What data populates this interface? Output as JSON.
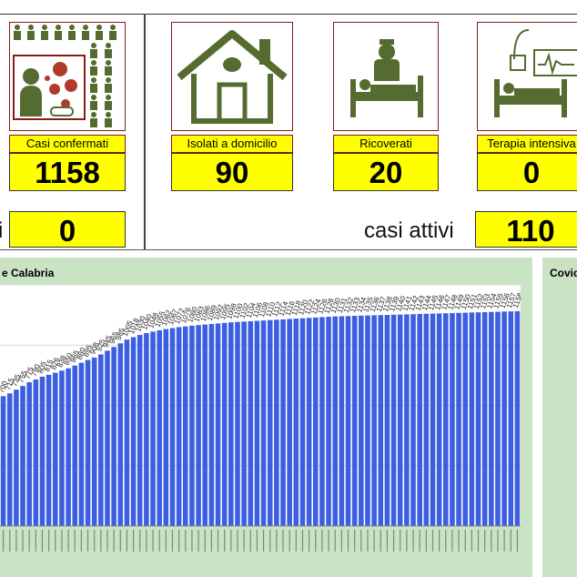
{
  "stats": {
    "confirmed_label": "Casi confermati",
    "confirmed_value": "1158",
    "isolated_label": "Isolati a domicilio",
    "isolated_value": "90",
    "hospitalized_label": "Ricoverati",
    "hospitalized_value": "20",
    "icu_label": "Terapia intensiva",
    "icu_value": "0",
    "left_partial_label": "i",
    "left_value": "0",
    "active_label": "casi attivi",
    "active_value": "110"
  },
  "icons": {
    "people_grid": "people-grid-icon",
    "virus_sneeze": "virus-sneeze-icon",
    "house": "house-icon",
    "hospital_bed": "hospital-bed-icon",
    "icu_bed": "icu-bed-icon"
  },
  "colors": {
    "label_bg": "#ffff00",
    "icon_green": "#556b2f",
    "bar_blue": "#3b5fe0",
    "panel_green": "#c9e3c4"
  },
  "left_panel": {
    "title": "e Calabria"
  },
  "right_panel": {
    "title": "Covid"
  },
  "chart_data": {
    "type": "bar",
    "title": "e Calabria",
    "ylim": [
      0,
      1300
    ],
    "grid": true,
    "series": [
      {
        "values": [
          700,
          715,
          735,
          755,
          775,
          790,
          805,
          815,
          826,
          838,
          850,
          865,
          880,
          895,
          908,
          925,
          945,
          965,
          985,
          1005,
          1018,
          1030,
          1040,
          1048,
          1055,
          1062,
          1067,
          1072,
          1076,
          1080,
          1083,
          1086,
          1089,
          1092,
          1095,
          1098,
          1100,
          1102,
          1104,
          1106,
          1108,
          1110,
          1112,
          1114,
          1116,
          1118,
          1120,
          1122,
          1124,
          1126,
          1128,
          1130,
          1131,
          1132,
          1133,
          1134,
          1135,
          1136,
          1137,
          1138,
          1139,
          1140,
          1141,
          1142,
          1143,
          1144,
          1145,
          1146,
          1147,
          1148,
          1149,
          1150,
          1151,
          1152,
          1153,
          1154,
          1155,
          1156,
          1157,
          1158
        ]
      }
    ]
  }
}
